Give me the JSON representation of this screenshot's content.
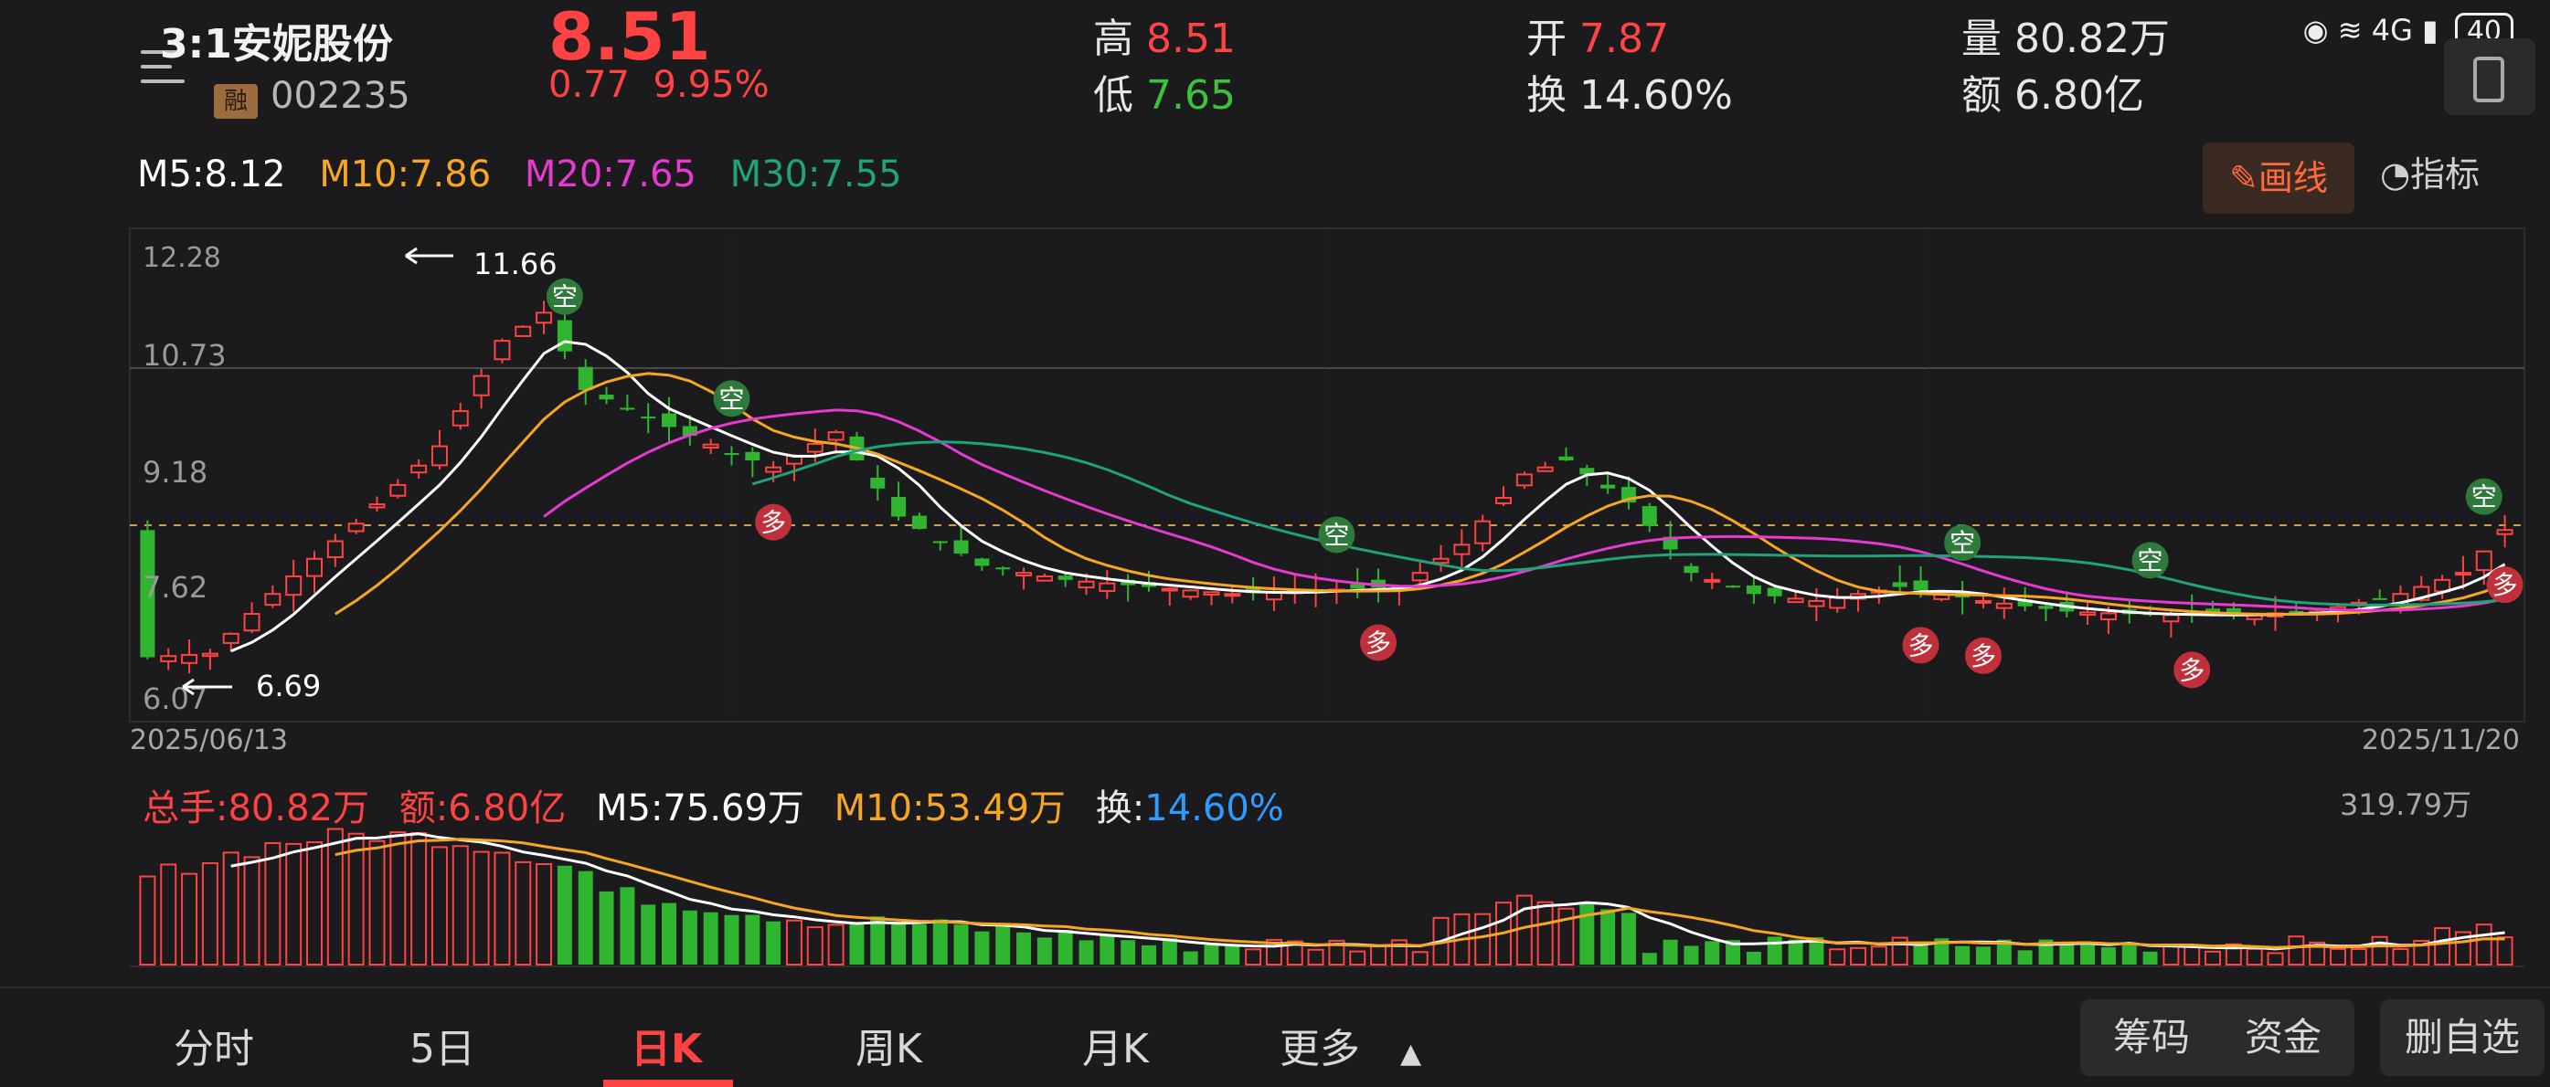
{
  "header": {
    "title": "3:1安妮股份",
    "badge": "融",
    "code": "002235",
    "price": "8.51",
    "change": "0.77",
    "change_pct": "9.95%",
    "high_label": "高",
    "high": "8.51",
    "low_label": "低",
    "low": "7.65",
    "open_label": "开",
    "open": "7.87",
    "turnover_label": "换",
    "turnover": "14.60%",
    "volume_label": "量",
    "volume": "80.82万",
    "amount_label": "额",
    "amount": "6.80亿"
  },
  "status_bar": {
    "network": "4G",
    "battery": "40"
  },
  "ma": {
    "m5": "M5:8.12",
    "m10": "M10:7.86",
    "m20": "M20:7.65",
    "m30": "M30:7.55",
    "colors": {
      "m5": "#ffffff",
      "m10": "#f6a622",
      "m20": "#e63ad1",
      "m30": "#1fa37a"
    }
  },
  "tools": {
    "draw": "画线",
    "indicator": "指标"
  },
  "kline": {
    "y_labels": [
      "12.28",
      "10.73",
      "9.18",
      "7.62",
      "6.07"
    ],
    "max_note": "11.66",
    "min_note": "6.69",
    "start_date": "2025/06/13",
    "end_date": "2025/11/20"
  },
  "volume": {
    "total": "总手:80.82万",
    "amount": "额:6.80亿",
    "m5": "M5:75.69万",
    "m10": "M10:53.49万",
    "turnover_label": "换:",
    "turnover": "14.60%",
    "max": "319.79万"
  },
  "tabs": [
    "分时",
    "5日",
    "日K",
    "周K",
    "月K",
    "更多"
  ],
  "right_buttons": [
    "筹码",
    "资金",
    "删自选"
  ],
  "colors": {
    "up": "#ff4242",
    "down": "#2fb52f",
    "bg": "#1b1b1d"
  }
}
